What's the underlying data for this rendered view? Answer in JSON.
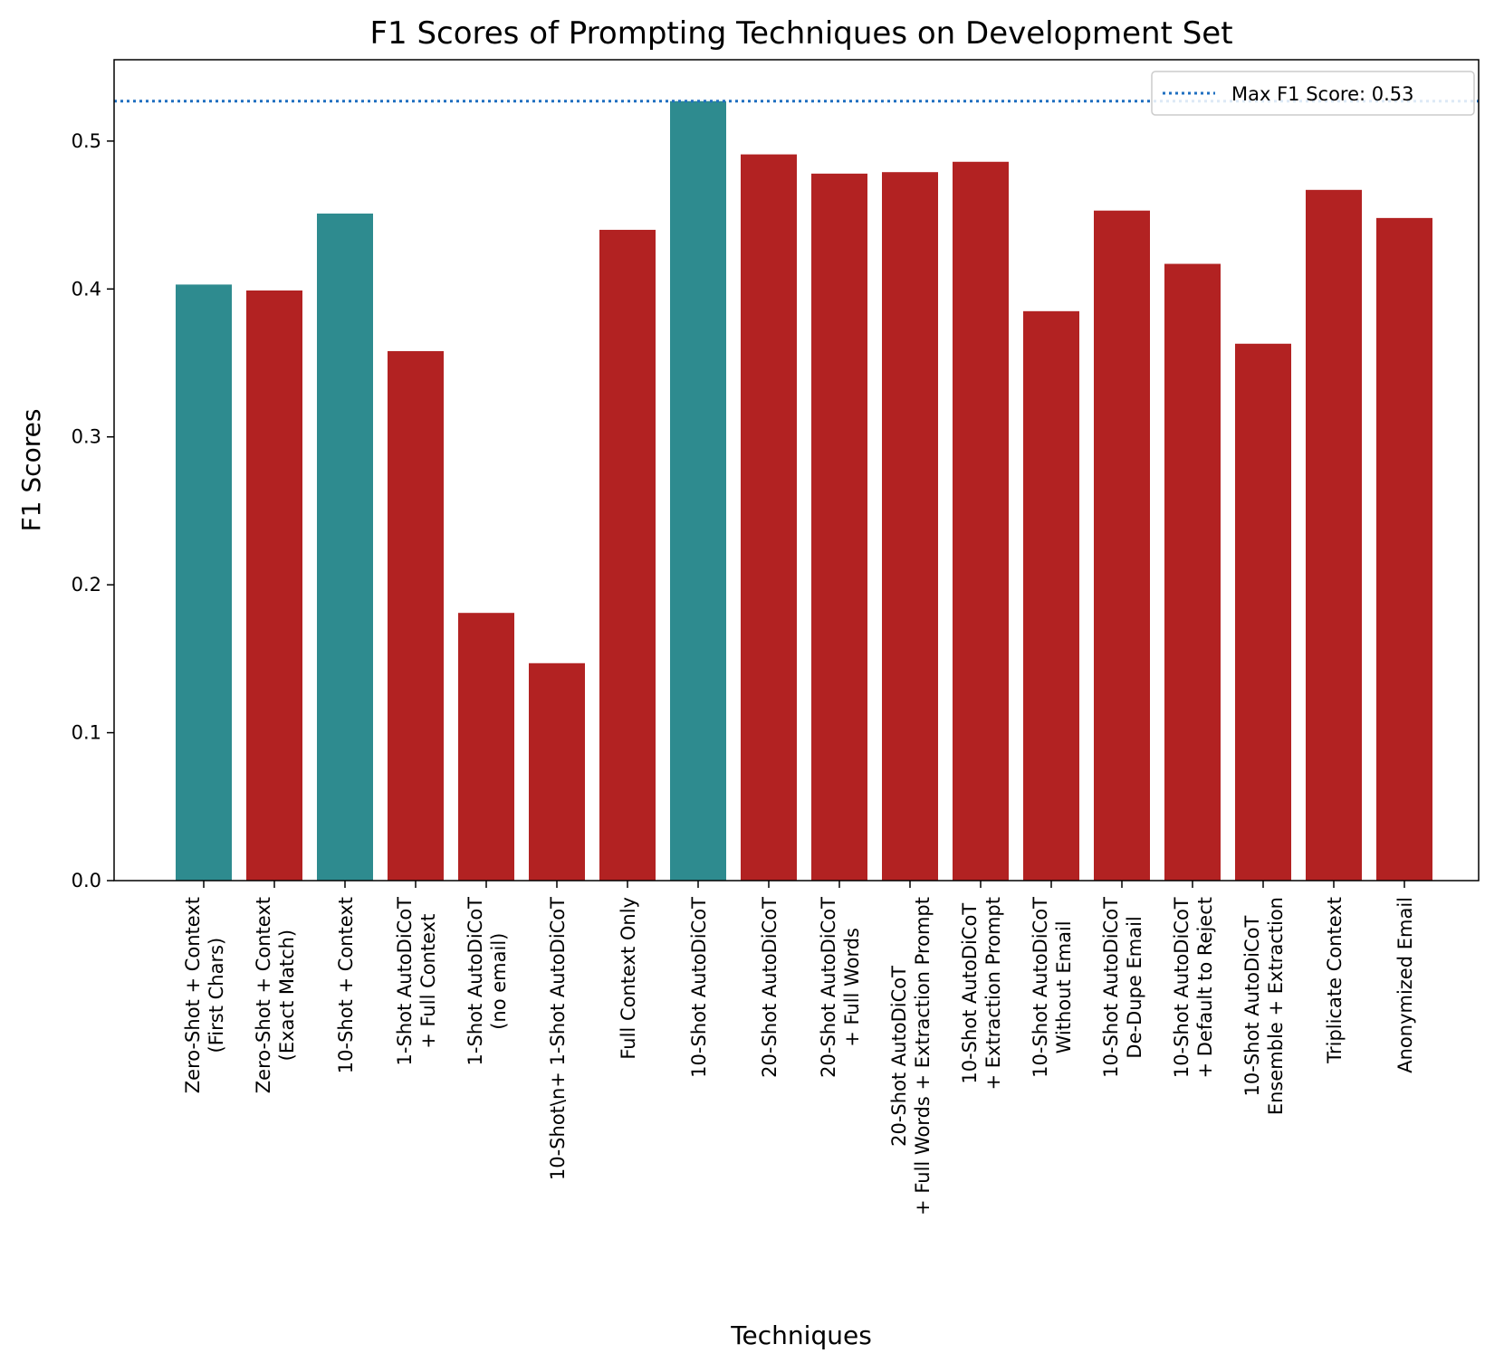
{
  "chart_data": {
    "type": "bar",
    "title": "F1 Scores of Prompting Techniques on Development Set",
    "xlabel": "Techniques",
    "ylabel": "F1 Scores",
    "ylim": [
      0,
      0.555
    ],
    "yticks": [
      "0.0",
      "0.1",
      "0.2",
      "0.3",
      "0.4",
      "0.5"
    ],
    "grid": false,
    "legend": {
      "position": "top-right",
      "label": "Max F1 Score: 0.53"
    },
    "reference_line": {
      "value": 0.527,
      "style": "dotted",
      "color": "#1f6fc0"
    },
    "colors": {
      "highlight": "#2e8b8f",
      "default": "#b22222"
    },
    "categories": [
      {
        "lines": [
          "Zero-Shot + Context",
          "(First Chars)"
        ],
        "value": 0.403,
        "highlight": true
      },
      {
        "lines": [
          "Zero-Shot + Context",
          "(Exact Match)"
        ],
        "value": 0.399,
        "highlight": false
      },
      {
        "lines": [
          "10-Shot + Context"
        ],
        "value": 0.451,
        "highlight": true
      },
      {
        "lines": [
          "1-Shot AutoDiCoT",
          "+ Full Context"
        ],
        "value": 0.358,
        "highlight": false
      },
      {
        "lines": [
          "1-Shot AutoDiCoT",
          "(no email)"
        ],
        "value": 0.181,
        "highlight": false
      },
      {
        "lines": [
          "10-Shot\\n+ 1-Shot AutoDiCoT"
        ],
        "value": 0.147,
        "highlight": false
      },
      {
        "lines": [
          "Full Context Only"
        ],
        "value": 0.44,
        "highlight": false
      },
      {
        "lines": [
          "10-Shot AutoDiCoT"
        ],
        "value": 0.527,
        "highlight": true
      },
      {
        "lines": [
          "20-Shot AutoDiCoT"
        ],
        "value": 0.491,
        "highlight": false
      },
      {
        "lines": [
          "20-Shot AutoDiCoT",
          "+ Full Words"
        ],
        "value": 0.478,
        "highlight": false
      },
      {
        "lines": [
          "20-Shot AutoDiCoT",
          "+ Full Words + Extraction Prompt"
        ],
        "value": 0.479,
        "highlight": false
      },
      {
        "lines": [
          "10-Shot AutoDiCoT",
          "+ Extraction Prompt"
        ],
        "value": 0.486,
        "highlight": false
      },
      {
        "lines": [
          "10-Shot AutoDiCoT",
          "Without Email"
        ],
        "value": 0.385,
        "highlight": false
      },
      {
        "lines": [
          "10-Shot AutoDiCoT",
          "De-Dupe Email"
        ],
        "value": 0.453,
        "highlight": false
      },
      {
        "lines": [
          "10-Shot AutoDiCoT",
          "+ Default to Reject"
        ],
        "value": 0.417,
        "highlight": false
      },
      {
        "lines": [
          "10-Shot AutoDiCoT",
          "Ensemble + Extraction"
        ],
        "value": 0.363,
        "highlight": false
      },
      {
        "lines": [
          "Triplicate Context"
        ],
        "value": 0.467,
        "highlight": false
      },
      {
        "lines": [
          "Anonymized Email"
        ],
        "value": 0.448,
        "highlight": false
      }
    ]
  }
}
